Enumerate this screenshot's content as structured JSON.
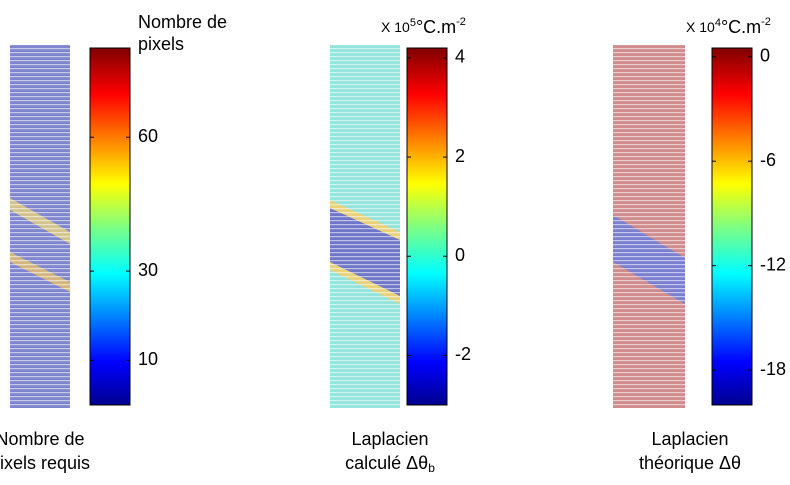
{
  "chart_data": [
    {
      "type": "heatmap",
      "colorbar_title": [
        "Nombre de",
        "pixels"
      ],
      "ylim": [
        0,
        80
      ],
      "yticks": [
        10,
        30,
        60
      ],
      "caption": [
        "Nombre de",
        "pixels requis"
      ]
    },
    {
      "type": "heatmap",
      "unit_prefix": "X 10",
      "unit_exponent": "5",
      "unit": "°C.m",
      "unit_exponent2": "-2",
      "ylim": [
        -3,
        4.2
      ],
      "yticks": [
        4,
        2,
        0,
        -2
      ],
      "caption": [
        "Laplacien",
        "calculé Δθ"
      ],
      "caption_subscript": "b"
    },
    {
      "type": "heatmap",
      "unit_prefix": "X 10",
      "unit_exponent": "4",
      "unit": "°C.m",
      "unit_exponent2": "-2",
      "ylim": [
        -20,
        0.5
      ],
      "yticks": [
        0,
        -6,
        -12,
        -18
      ],
      "caption": [
        "Laplacien",
        "théorique Δθ"
      ]
    }
  ]
}
